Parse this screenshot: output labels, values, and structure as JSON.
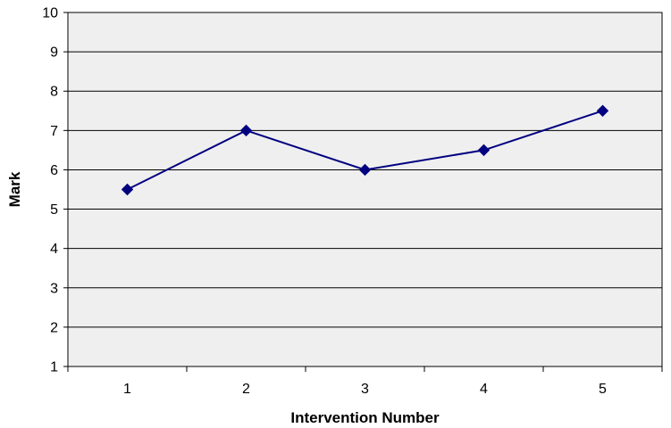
{
  "chart_data": {
    "type": "line",
    "title": "",
    "xlabel": "Intervention Number",
    "ylabel": "Mark",
    "x": [
      1,
      2,
      3,
      4,
      5
    ],
    "x_tick_labels": [
      "1",
      "2",
      "3",
      "4",
      "5"
    ],
    "y_tick_labels": [
      "1",
      "2",
      "3",
      "4",
      "5",
      "6",
      "7",
      "8",
      "9",
      "10"
    ],
    "ylim": [
      1,
      10
    ],
    "series": [
      {
        "values": [
          5.5,
          7,
          6,
          6.5,
          7.5
        ]
      }
    ],
    "grid": "horizontal",
    "marker": "diamond",
    "colors": {
      "line": "#000080",
      "plot_background": "#efefef",
      "gridline": "#000000"
    }
  }
}
